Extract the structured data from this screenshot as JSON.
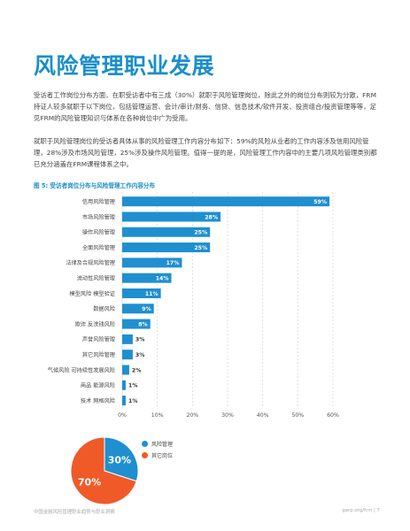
{
  "page": {
    "title": "风险管理职业发展",
    "para1": "受访者工作岗位分布方面，在职受访者中有三成（30%）就职于风险管理岗位，除此之外的岗位分布则较为分散，FRM持证人较多就职于以下岗位，包括管理运营、会计/审计/财务、信贷、信息技术/软件开发、投资组合/投资管理等等，足见FRM的风险管理知识与体系在各种岗位中广为受用。",
    "para2": "就职于风险管理岗位的受访者具体从事的风险管理工作内容分布如下：59%的风险从业者的工作内容涉及信用风险管理，28%涉及市场风险管理，25%涉及操作风险管理。值得一提的是，风险管理工作内容中的主要几项风险管理类别都已充分涵盖在FRM课程体系之中。",
    "figure_title": "图 5: 受访者岗位分布与风险管理工作内容分布",
    "footer_left": "中国金融风险管理职业趋势与职业洞察",
    "footer_right": "garp.org/frm | 7"
  },
  "colors": {
    "blue": "#1f8fd0",
    "orange": "#ef5a28",
    "title": "#1a8fc9"
  },
  "chart_data": [
    {
      "type": "bar",
      "orientation": "horizontal",
      "categories": [
        "信用风险管理",
        "市场风险管理",
        "操作风险管理",
        "全面风险管理",
        "法律及合规风险管理",
        "流动性风险管理",
        "模型风险 模型验证",
        "数据风险",
        "欺诈 反洗钱风险",
        "声誉风险管理",
        "其它风险管理",
        "气候风险 可持续性发展风险",
        "商品 能源风险",
        "技术 网格风险"
      ],
      "values": [
        59,
        28,
        25,
        25,
        17,
        14,
        11,
        9,
        8,
        3,
        3,
        2,
        1,
        1
      ],
      "value_labels": [
        "59%",
        "28%",
        "25%",
        "25%",
        "17%",
        "14%",
        "11%",
        "9%",
        "8%",
        "3%",
        "3%",
        "2%",
        "1%",
        "1%"
      ],
      "xlim": [
        0,
        60
      ],
      "xticks": [
        "0%",
        "10%",
        "20%",
        "30%",
        "40%",
        "50%",
        "60%"
      ],
      "gridlines": true,
      "color": "#1f8fd0"
    },
    {
      "type": "pie",
      "slices": [
        {
          "name": "风险管理",
          "value": 30,
          "label": "30%",
          "color": "#1f8fd0"
        },
        {
          "name": "其它岗位",
          "value": 70,
          "label": "70%",
          "color": "#ef5a28"
        }
      ],
      "legend": "right"
    }
  ]
}
